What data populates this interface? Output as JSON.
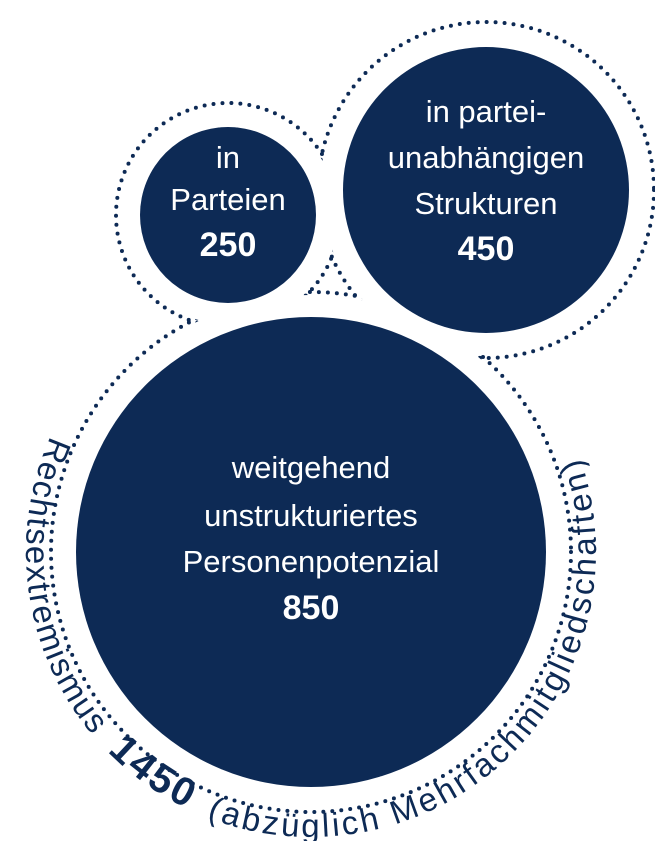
{
  "bubbles": [
    {
      "label": [
        "in",
        "Parteien"
      ],
      "value": 250
    },
    {
      "label": [
        "in partei-",
        "unabhängigen",
        "Strukturen"
      ],
      "value": 450
    },
    {
      "label": [
        "weitgehend",
        "unstrukturiertes",
        "Personenpotenzial"
      ],
      "value": 850
    }
  ],
  "total": {
    "label": "Rechtsextremismus",
    "value": 1450,
    "note": "(abzüglich Mehrfachmitgliedschaften)"
  }
}
